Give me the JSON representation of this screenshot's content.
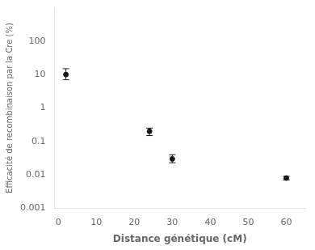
{
  "chart_data": {
    "type": "scatter",
    "x": [
      2,
      24,
      30,
      60
    ],
    "values": [
      10.0,
      0.2,
      0.03,
      0.008
    ],
    "yerr_lower": [
      3.0,
      0.05,
      0.007,
      0.001
    ],
    "yerr_upper": [
      5.0,
      0.05,
      0.01,
      0.001
    ],
    "xlabel": "Distance génétique (cM)",
    "ylabel": "Efficacité de recombinaison par la Cre (%)",
    "xlim": [
      -1,
      65
    ],
    "xticks": [
      0,
      10,
      20,
      30,
      40,
      50,
      60
    ],
    "ylim": [
      0.001,
      1000
    ],
    "yticks": [
      0.001,
      0.01,
      0.1,
      1,
      10,
      100
    ],
    "log": "y",
    "color": "#1a1a1a",
    "marker": "circle",
    "grid": false
  }
}
